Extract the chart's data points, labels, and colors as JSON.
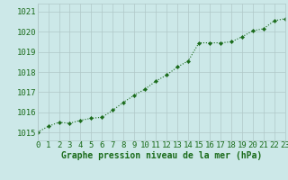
{
  "x": [
    0,
    1,
    2,
    3,
    4,
    5,
    6,
    7,
    8,
    9,
    10,
    11,
    12,
    13,
    14,
    15,
    16,
    17,
    18,
    19,
    20,
    21,
    22,
    23
  ],
  "y": [
    1015.0,
    1015.3,
    1015.5,
    1015.45,
    1015.6,
    1015.7,
    1015.75,
    1016.1,
    1016.5,
    1016.85,
    1017.15,
    1017.55,
    1017.85,
    1018.25,
    1018.55,
    1019.45,
    1019.45,
    1019.45,
    1019.5,
    1019.75,
    1020.05,
    1020.15,
    1020.55,
    1020.65
  ],
  "line_color": "#1a6b1a",
  "marker_color": "#1a6b1a",
  "bg_color": "#cce8e8",
  "grid_color": "#b0c8c8",
  "xlabel": "Graphe pression niveau de la mer (hPa)",
  "xlabel_color": "#1a6b1a",
  "ylabel_ticks": [
    1015,
    1016,
    1017,
    1018,
    1019,
    1020,
    1021
  ],
  "ylim": [
    1014.6,
    1021.4
  ],
  "xlim": [
    0,
    23
  ],
  "tick_label_color": "#1a6b1a",
  "xlabel_fontsize": 7.0,
  "tick_fontsize": 6.5
}
